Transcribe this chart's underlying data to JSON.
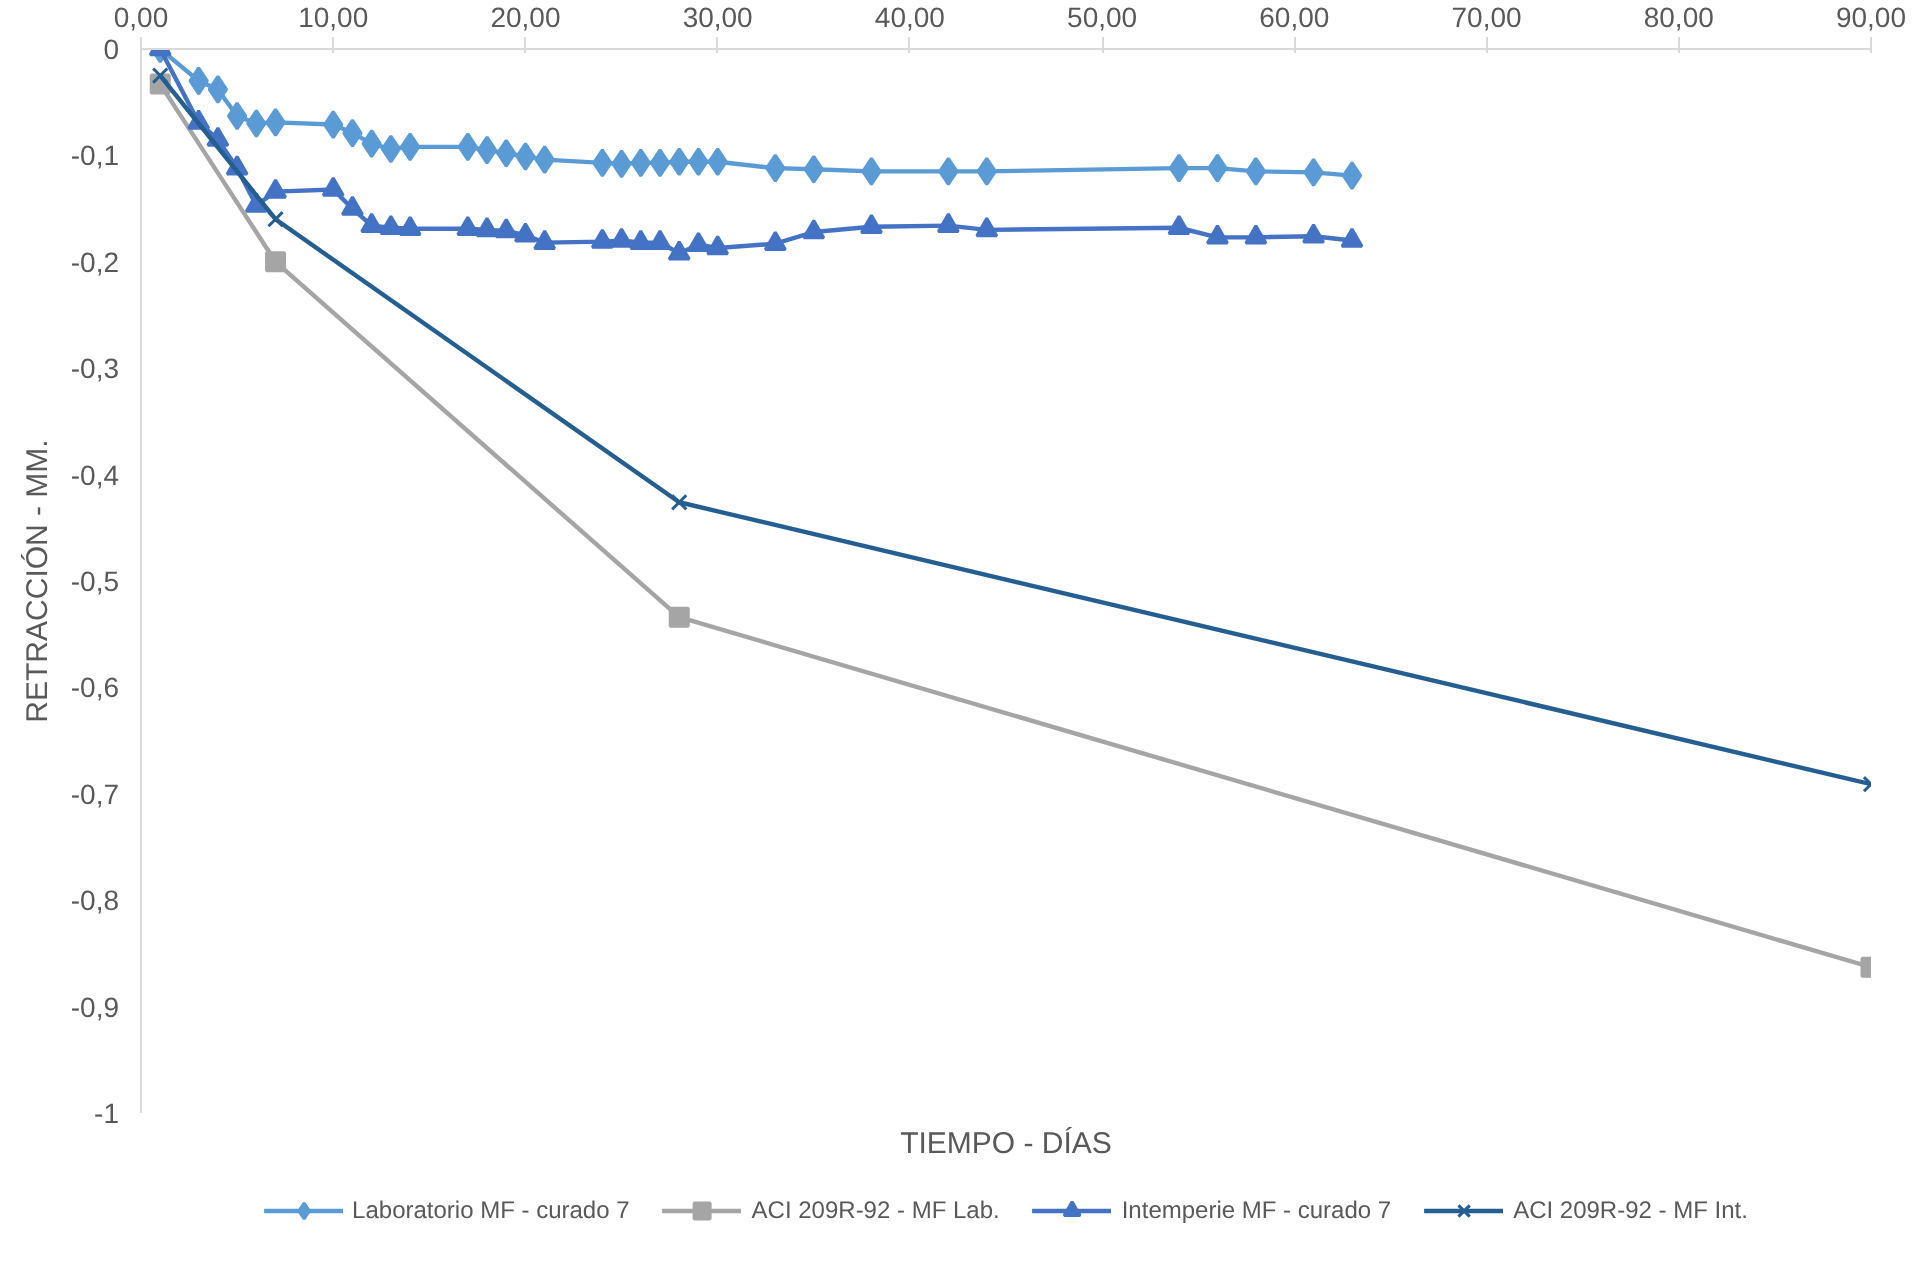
{
  "chart_data": {
    "type": "line",
    "xlabel": "TIEMPO - DÍAS",
    "ylabel": "RETRACCIÓN - MM.",
    "xlim": [
      0,
      90
    ],
    "ylim": [
      -1,
      0
    ],
    "xticks": [
      {
        "value": 0,
        "label": "0,00"
      },
      {
        "value": 10,
        "label": "10,00"
      },
      {
        "value": 20,
        "label": "20,00"
      },
      {
        "value": 30,
        "label": "30,00"
      },
      {
        "value": 40,
        "label": "40,00"
      },
      {
        "value": 50,
        "label": "50,00"
      },
      {
        "value": 60,
        "label": "60,00"
      },
      {
        "value": 70,
        "label": "70,00"
      },
      {
        "value": 80,
        "label": "80,00"
      },
      {
        "value": 90,
        "label": "90,00"
      }
    ],
    "yticks": [
      0,
      {
        "value": -0.1,
        "label": "-0,1"
      },
      {
        "value": -0.2,
        "label": "-0,2"
      },
      {
        "value": -0.3,
        "label": "-0,3"
      },
      {
        "value": -0.4,
        "label": "-0,4"
      },
      {
        "value": -0.5,
        "label": "-0,5"
      },
      {
        "value": -0.6,
        "label": "-0,6"
      },
      {
        "value": -0.7,
        "label": "-0,7"
      },
      {
        "value": -0.8,
        "label": "-0,8"
      },
      {
        "value": -0.9,
        "label": "-0,9"
      },
      -1
    ],
    "grid": false,
    "legend": "bottom",
    "line_style": "solid",
    "series": [
      {
        "name": "Laboratorio MF - curado 7",
        "color": "#5b9bd5",
        "marker": "diamond",
        "x": [
          1,
          3,
          4,
          5,
          6,
          7,
          10,
          11,
          12,
          13,
          14,
          17,
          18,
          19,
          20,
          21,
          24,
          25,
          26,
          27,
          28,
          29,
          30,
          33,
          35,
          38,
          42,
          44,
          54,
          56,
          58,
          61,
          63
        ],
        "values": [
          0,
          -0.03,
          -0.038,
          -0.063,
          -0.07,
          -0.069,
          -0.071,
          -0.079,
          -0.089,
          -0.094,
          -0.092,
          -0.092,
          -0.095,
          -0.098,
          -0.101,
          -0.104,
          -0.107,
          -0.108,
          -0.107,
          -0.107,
          -0.106,
          -0.106,
          -0.106,
          -0.112,
          -0.113,
          -0.115,
          -0.115,
          -0.115,
          -0.112,
          -0.112,
          -0.115,
          -0.116,
          -0.119
        ]
      },
      {
        "name": "ACI 209R-92 - MF Lab.",
        "color": "#a5a5a5",
        "marker": "square",
        "x": [
          1,
          7,
          28,
          90
        ],
        "values": [
          -0.033,
          -0.2,
          -0.534,
          -0.863
        ]
      },
      {
        "name": "Intemperie MF - curado 7",
        "color": "#4472c4",
        "marker": "triangle",
        "x": [
          1,
          3,
          4,
          5,
          6,
          7,
          10,
          11,
          12,
          13,
          14,
          17,
          18,
          19,
          20,
          21,
          24,
          25,
          26,
          27,
          28,
          29,
          30,
          33,
          35,
          38,
          42,
          44,
          54,
          56,
          58,
          61,
          63
        ],
        "values": [
          0,
          -0.069,
          -0.085,
          -0.112,
          -0.147,
          -0.134,
          -0.132,
          -0.15,
          -0.166,
          -0.168,
          -0.169,
          -0.169,
          -0.17,
          -0.171,
          -0.175,
          -0.182,
          -0.181,
          -0.18,
          -0.182,
          -0.182,
          -0.192,
          -0.184,
          -0.187,
          -0.183,
          -0.172,
          -0.167,
          -0.166,
          -0.17,
          -0.168,
          -0.177,
          -0.177,
          -0.176,
          -0.18
        ]
      },
      {
        "name": "ACI 209R-92 - MF Int.",
        "color": "#255e91",
        "marker": "cross",
        "x": [
          1,
          7,
          28,
          90
        ],
        "values": [
          -0.025,
          -0.16,
          -0.426,
          -0.691
        ]
      }
    ]
  }
}
